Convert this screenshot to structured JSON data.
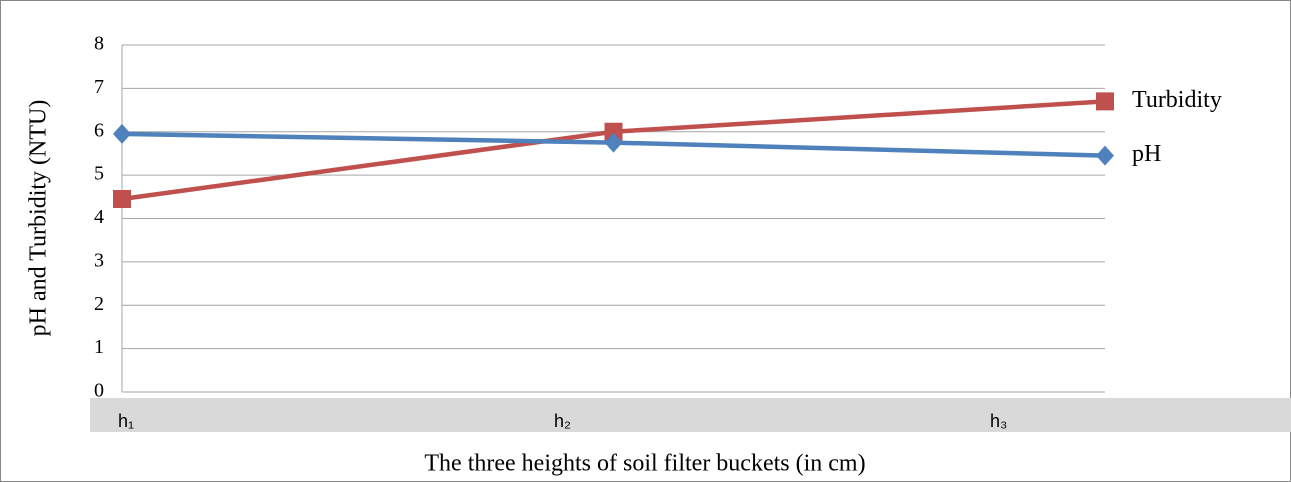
{
  "chart_data": {
    "type": "line",
    "x_label": "The three heights of soil filter buckets (in cm)",
    "y_label": "pH and Turbidity  (NTU)",
    "categories": [
      "h₁",
      "h₂",
      "h₃"
    ],
    "series": [
      {
        "name": "Turbidity",
        "color": "#c0504d",
        "marker": "square",
        "values": [
          4.45,
          6.0,
          6.7
        ]
      },
      {
        "name": "pH",
        "color": "#4f81bd",
        "marker": "diamond",
        "values": [
          5.95,
          5.75,
          5.45
        ]
      }
    ],
    "ylim": [
      0,
      8
    ],
    "yticks": [
      0,
      1,
      2,
      3,
      4,
      5,
      6,
      7,
      8
    ],
    "grid": true
  }
}
